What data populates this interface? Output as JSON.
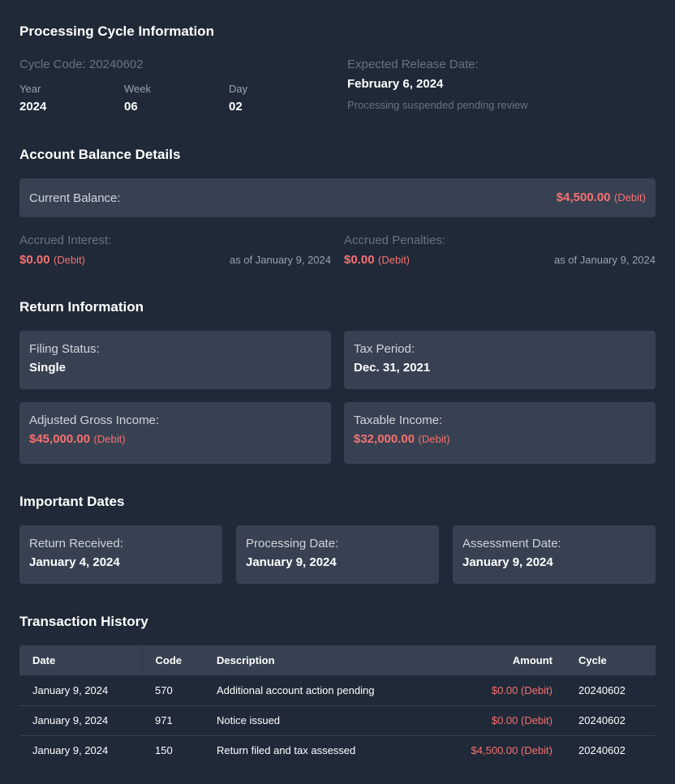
{
  "cycle": {
    "title": "Processing Cycle Information",
    "code_label": "Cycle Code: 20240602",
    "year_label": "Year",
    "year": "2024",
    "week_label": "Week",
    "week": "06",
    "day_label": "Day",
    "day": "02",
    "release_label": "Expected Release Date:",
    "release_date": "February 6, 2024",
    "status": "Processing suspended pending review"
  },
  "balance": {
    "title": "Account Balance Details",
    "current_label": "Current Balance:",
    "current_value": "$4,500.00",
    "current_type": "(Debit)",
    "interest_label": "Accrued Interest:",
    "interest_value": "$0.00",
    "interest_type": "(Debit)",
    "interest_asof": "as of January 9, 2024",
    "penalties_label": "Accrued Penalties:",
    "penalties_value": "$0.00",
    "penalties_type": "(Debit)",
    "penalties_asof": "as of January 9, 2024"
  },
  "return": {
    "title": "Return Information",
    "filing_label": "Filing Status:",
    "filing": "Single",
    "period_label": "Tax Period:",
    "period": "Dec. 31, 2021",
    "agi_label": "Adjusted Gross Income:",
    "agi": "$45,000.00",
    "agi_type": "(Debit)",
    "taxable_label": "Taxable Income:",
    "taxable": "$32,000.00",
    "taxable_type": "(Debit)"
  },
  "dates": {
    "title": "Important Dates",
    "received_label": "Return Received:",
    "received": "January 4, 2024",
    "processing_label": "Processing Date:",
    "processing": "January 9, 2024",
    "assessment_label": "Assessment Date:",
    "assessment": "January 9, 2024"
  },
  "transactions": {
    "title": "Transaction History",
    "headers": [
      "Date",
      "Code",
      "Description",
      "Amount",
      "Cycle"
    ],
    "rows": [
      {
        "date": "January 9, 2024",
        "code": "570",
        "description": "Additional account action pending",
        "amount": "$0.00 (Debit)",
        "cycle": "20240602"
      },
      {
        "date": "January 9, 2024",
        "code": "971",
        "description": "Notice issued",
        "amount": "$0.00 (Debit)",
        "cycle": "20240602"
      },
      {
        "date": "January 9, 2024",
        "code": "150",
        "description": "Return filed and tax assessed",
        "amount": "$4,500.00 (Debit)",
        "cycle": "20240602"
      }
    ]
  },
  "colors": {
    "background": "#1f2937",
    "card": "#374151",
    "debit": "#f87171"
  }
}
